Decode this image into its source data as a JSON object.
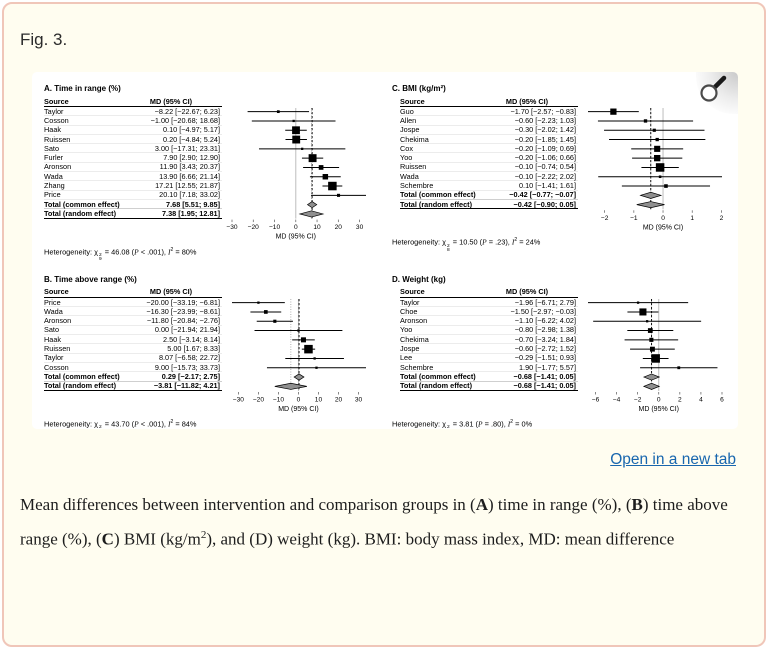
{
  "figure": {
    "label": "Fig. 3."
  },
  "link": {
    "text": "Open in a new tab"
  },
  "caption": {
    "segments": [
      {
        "t": "Mean differences between intervention and comparison groups in ("
      },
      {
        "t": "A",
        "b": true
      },
      {
        "t": ") time in range (%), ("
      },
      {
        "t": "B",
        "b": true
      },
      {
        "t": ") time above range (%), ("
      },
      {
        "t": "C",
        "b": true
      },
      {
        "t": ") BMI (kg/m"
      },
      {
        "t": "2",
        "sup": true
      },
      {
        "t": "), and (D) weight (kg). BMI: body mass index, MD: mean difference"
      }
    ]
  },
  "chart_data": [
    {
      "type": "forest",
      "panel": "A",
      "title": "A. Time in range (%)",
      "col_source": "Source",
      "col_md": "MD (95% CI)",
      "studies": [
        {
          "source": "Taylor",
          "text": "−8.22 [−22.67; 6.23]",
          "md": -8.22,
          "lo": -22.67,
          "hi": 6.23
        },
        {
          "source": "Cosson",
          "text": "−1.00 [−20.68; 18.68]",
          "md": -1.0,
          "lo": -20.68,
          "hi": 18.68
        },
        {
          "source": "Haak",
          "text": "0.10 [−4.97; 5.17]",
          "md": 0.1,
          "lo": -4.97,
          "hi": 5.17
        },
        {
          "source": "Ruissen",
          "text": "0.20 [−4.84; 5.24]",
          "md": 0.2,
          "lo": -4.84,
          "hi": 5.24
        },
        {
          "source": "Sato",
          "text": "3.00 [−17.31; 23.31]",
          "md": 3.0,
          "lo": -17.31,
          "hi": 23.31
        },
        {
          "source": "Furler",
          "text": "7.90 [2.90; 12.90]",
          "md": 7.9,
          "lo": 2.9,
          "hi": 12.9
        },
        {
          "source": "Aronson",
          "text": "11.90 [3.43; 20.37]",
          "md": 11.9,
          "lo": 3.43,
          "hi": 20.37
        },
        {
          "source": "Wada",
          "text": "13.90 [6.66; 21.14]",
          "md": 13.9,
          "lo": 6.66,
          "hi": 21.14
        },
        {
          "source": "Zhang",
          "text": "17.21 [12.55; 21.87]",
          "md": 17.21,
          "lo": 12.55,
          "hi": 21.87
        },
        {
          "source": "Price",
          "text": "20.10 [7.18; 33.02]",
          "md": 20.1,
          "lo": 7.18,
          "hi": 33.02
        }
      ],
      "totals": [
        {
          "source": "Total (common effect)",
          "text": "7.68 [5.51; 9.85]",
          "md": 7.68,
          "lo": 5.51,
          "hi": 9.85
        },
        {
          "source": "Total (random effect)",
          "text": "7.38 [1.95; 12.81]",
          "md": 7.38,
          "lo": 1.95,
          "hi": 12.81
        }
      ],
      "ticks": [
        -30,
        -20,
        -10,
        0,
        10,
        20,
        30
      ],
      "axis_label": "MD (95% CI)",
      "ref_line": 0,
      "common_effect": 7.68,
      "random_effect": 7.38,
      "heterogeneity": {
        "chi_sub": "9",
        "chi_val": "46.08",
        "p": "< .001",
        "i2": "80%"
      },
      "indent": false
    },
    {
      "type": "forest",
      "panel": "B",
      "title": "B. Time above range (%)",
      "col_source": "Source",
      "col_md": "MD (95% CI)",
      "studies": [
        {
          "source": "Price",
          "text": "−20.00 [−33.19; −6.81]",
          "md": -20.0,
          "lo": -33.19,
          "hi": -6.81
        },
        {
          "source": "Wada",
          "text": "−16.30 [−23.99; −8.61]",
          "md": -16.3,
          "lo": -23.99,
          "hi": -8.61
        },
        {
          "source": "Aronson",
          "text": "−11.80 [−20.84; −2.76]",
          "md": -11.8,
          "lo": -20.84,
          "hi": -2.76
        },
        {
          "source": "Sato",
          "text": "0.00 [−21.94; 21.94]",
          "md": 0.0,
          "lo": -21.94,
          "hi": 21.94
        },
        {
          "source": "Haak",
          "text": "2.50 [−3.14; 8.14]",
          "md": 2.5,
          "lo": -3.14,
          "hi": 8.14
        },
        {
          "source": "Ruissen",
          "text": "5.00 [1.67; 8.33]",
          "md": 5.0,
          "lo": 1.67,
          "hi": 8.33
        },
        {
          "source": "Taylor",
          "text": "8.07 [−6.58; 22.72]",
          "md": 8.07,
          "lo": -6.58,
          "hi": 22.72
        },
        {
          "source": "Cosson",
          "text": "9.00 [−15.73; 33.73]",
          "md": 9.0,
          "lo": -15.73,
          "hi": 33.73
        }
      ],
      "totals": [
        {
          "source": "Total (common effect)",
          "text": "0.29 [−2.17; 2.75]",
          "md": 0.29,
          "lo": -2.17,
          "hi": 2.75
        },
        {
          "source": "Total (random effect)",
          "text": "−3.81 [−11.82; 4.21]",
          "md": -3.81,
          "lo": -11.82,
          "hi": 4.21
        }
      ],
      "ticks": [
        -30,
        -20,
        -10,
        0,
        10,
        20,
        30
      ],
      "axis_label": "MD (95% CI)",
      "ref_line": 0,
      "common_effect": 0.29,
      "random_effect": -3.81,
      "heterogeneity": {
        "chi_sub": "7",
        "chi_val": "43.70",
        "p": "< .001",
        "i2": "84%"
      },
      "indent": false
    },
    {
      "type": "forest",
      "panel": "C",
      "title": "C. BMI (kg/m²)",
      "col_source": "Source",
      "col_md": "MD (95% CI)",
      "studies": [
        {
          "source": "Guo",
          "text": "−1.70 [−2.57; −0.83]",
          "md": -1.7,
          "lo": -2.57,
          "hi": -0.83
        },
        {
          "source": "Allen",
          "text": "−0.60 [−2.23; 1.03]",
          "md": -0.6,
          "lo": -2.23,
          "hi": 1.03
        },
        {
          "source": "Jospe",
          "text": "−0.30 [−2.02; 1.42]",
          "md": -0.3,
          "lo": -2.02,
          "hi": 1.42
        },
        {
          "source": "Chekima",
          "text": "−0.20 [−1.85; 1.45]",
          "md": -0.2,
          "lo": -1.85,
          "hi": 1.45
        },
        {
          "source": "Cox",
          "text": "−0.20 [−1.09; 0.69]",
          "md": -0.2,
          "lo": -1.09,
          "hi": 0.69
        },
        {
          "source": "Yoo",
          "text": "−0.20 [−1.06; 0.66]",
          "md": -0.2,
          "lo": -1.06,
          "hi": 0.66
        },
        {
          "source": "Ruissen",
          "text": "−0.10 [−0.74; 0.54]",
          "md": -0.1,
          "lo": -0.74,
          "hi": 0.54
        },
        {
          "source": "Wada",
          "text": "−0.10 [−2.22; 2.02]",
          "md": -0.1,
          "lo": -2.22,
          "hi": 2.02
        },
        {
          "source": "Schembre",
          "text": "0.10 [−1.41; 1.61]",
          "md": 0.1,
          "lo": -1.41,
          "hi": 1.61
        }
      ],
      "totals": [
        {
          "source": "Total (common effect)",
          "text": "−0.42 [−0.77; −0.07]",
          "md": -0.42,
          "lo": -0.77,
          "hi": -0.07
        },
        {
          "source": "Total (random effect)",
          "text": "−0.42 [−0.90; 0.05]",
          "md": -0.42,
          "lo": -0.9,
          "hi": 0.05
        }
      ],
      "ticks": [
        -2,
        -1,
        0,
        1,
        2
      ],
      "axis_label": "MD (95% CI)",
      "ref_line": 0,
      "common_effect": -0.42,
      "random_effect": -0.42,
      "heterogeneity": {
        "chi_sub": "8",
        "chi_val": "10.50",
        "p": "= .23",
        "i2": "24%"
      },
      "indent": true
    },
    {
      "type": "forest",
      "panel": "D",
      "title": "D. Weight (kg)",
      "col_source": "Source",
      "col_md": "MD (95% CI)",
      "studies": [
        {
          "source": "Taylor",
          "text": "−1.96 [−6.71; 2.79]",
          "md": -1.96,
          "lo": -6.71,
          "hi": 2.79
        },
        {
          "source": "Choe",
          "text": "−1.50 [−2.97; −0.03]",
          "md": -1.5,
          "lo": -2.97,
          "hi": -0.03
        },
        {
          "source": "Aronson",
          "text": "−1.10 [−6.22; 4.02]",
          "md": -1.1,
          "lo": -6.22,
          "hi": 4.02
        },
        {
          "source": "Yoo",
          "text": "−0.80 [−2.98; 1.38]",
          "md": -0.8,
          "lo": -2.98,
          "hi": 1.38
        },
        {
          "source": "Chekima",
          "text": "−0.70 [−3.24; 1.84]",
          "md": -0.7,
          "lo": -3.24,
          "hi": 1.84
        },
        {
          "source": "Jospe",
          "text": "−0.60 [−2.72; 1.52]",
          "md": -0.6,
          "lo": -2.72,
          "hi": 1.52
        },
        {
          "source": "Lee",
          "text": "−0.29 [−1.51; 0.93]",
          "md": -0.29,
          "lo": -1.51,
          "hi": 0.93
        },
        {
          "source": "Schembre",
          "text": "1.90 [−1.77; 5.57]",
          "md": 1.9,
          "lo": -1.77,
          "hi": 5.57
        }
      ],
      "totals": [
        {
          "source": "Total (common effect)",
          "text": "−0.68 [−1.41; 0.05]",
          "md": -0.68,
          "lo": -1.41,
          "hi": 0.05
        },
        {
          "source": "Total (random effect)",
          "text": "−0.68 [−1.41; 0.05]",
          "md": -0.68,
          "lo": -1.41,
          "hi": 0.05
        }
      ],
      "ticks": [
        -6,
        -4,
        -2,
        0,
        2,
        4,
        6
      ],
      "axis_label": "MD (95% CI)",
      "ref_line": 0,
      "common_effect": -0.68,
      "random_effect": -0.68,
      "heterogeneity": {
        "chi_sub": "7",
        "chi_val": "3.81",
        "p": "= .80",
        "i2": "0%"
      },
      "indent": true
    }
  ],
  "colors": {
    "card_bg": "#fffdf0",
    "card_border": "#f0c6b9",
    "figure_bg": "#ffffff",
    "link": "#1866ae",
    "diamond_fill": "#8f8f8f",
    "marker": "#000000"
  }
}
